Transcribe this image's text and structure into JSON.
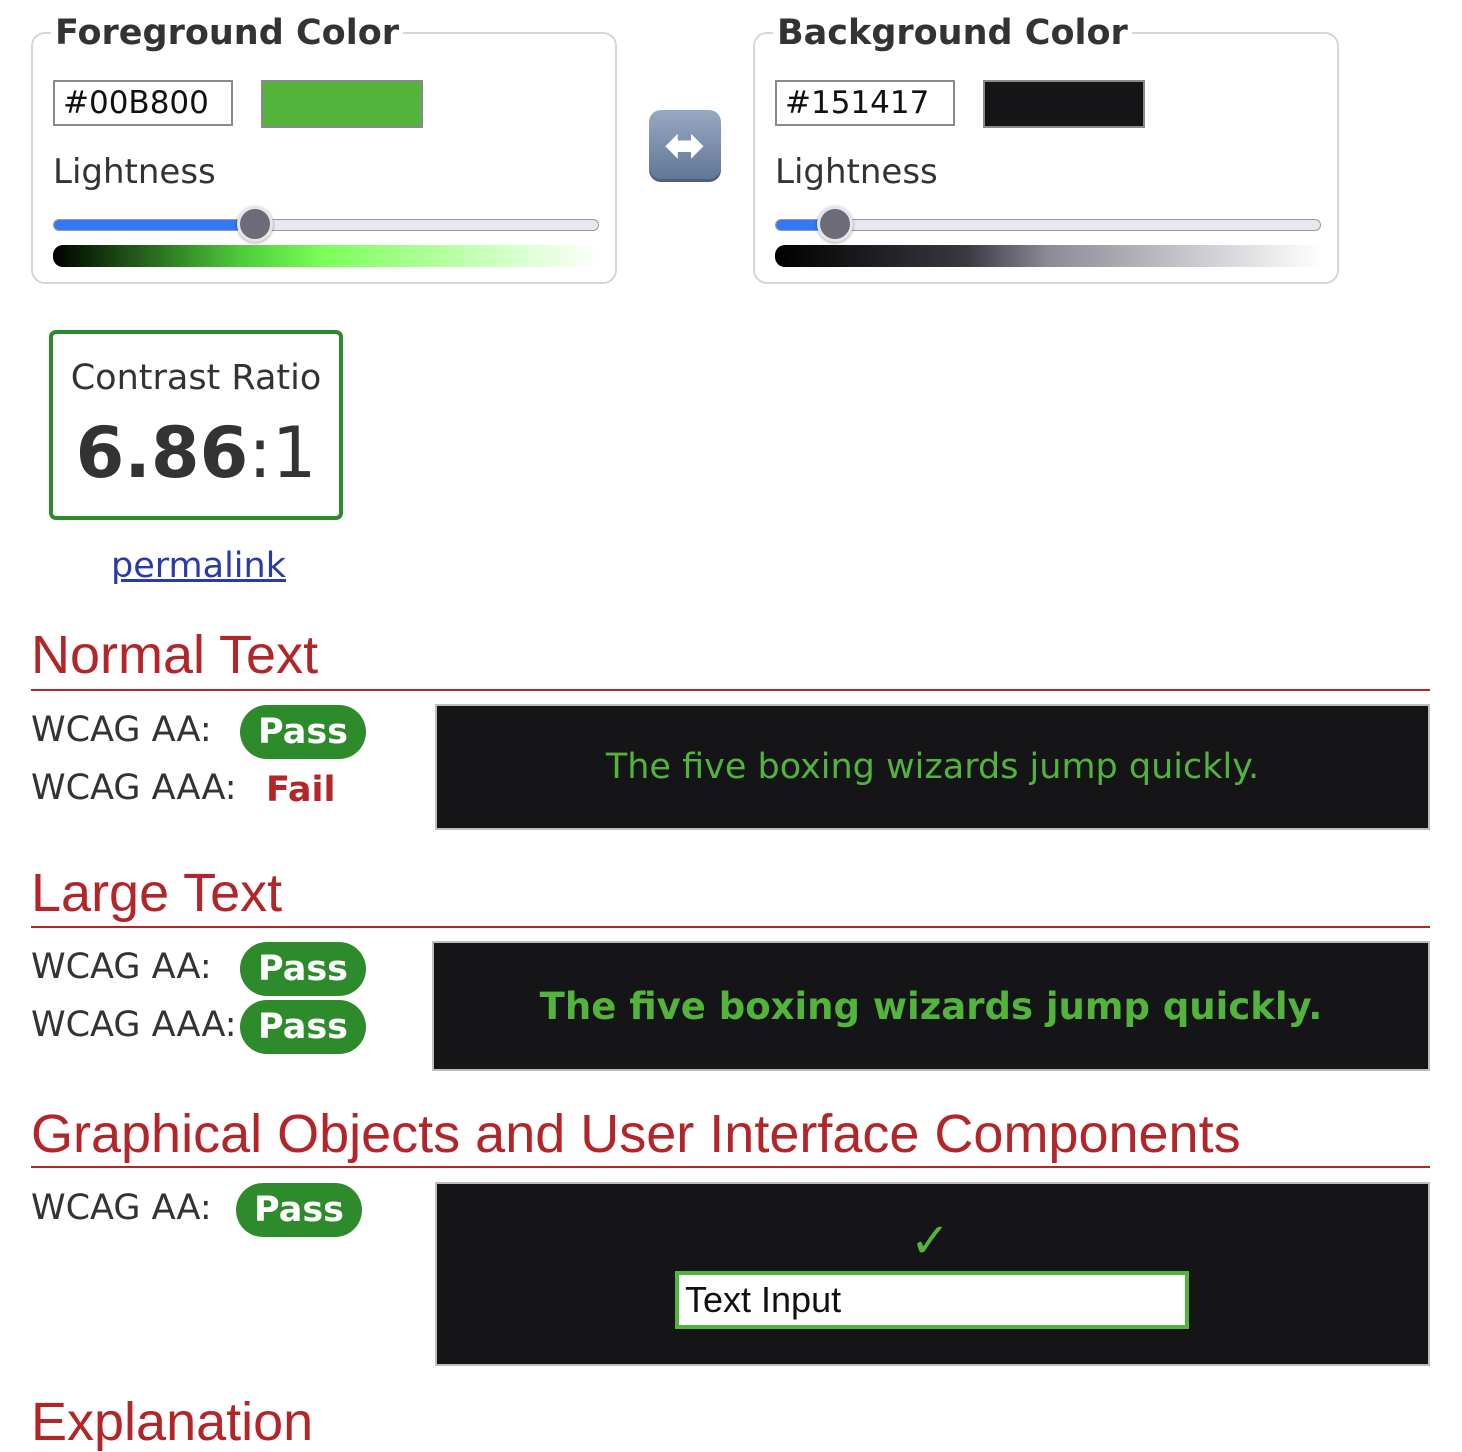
{
  "foreground": {
    "legend": "Foreground Color",
    "hex_value": "#00B800",
    "swatch_color": "#52b43a",
    "lightness_label": "Lightness",
    "lightness_fraction": 0.37,
    "gradient": [
      "#000000",
      "#4ecf3a",
      "#7dff5a",
      "#ffffff"
    ]
  },
  "background": {
    "legend": "Background Color",
    "hex_value": "#151417",
    "swatch_color": "#151417",
    "lightness_label": "Lightness",
    "lightness_fraction": 0.11,
    "gradient": [
      "#000000",
      "#3a3840",
      "#8c8a96",
      "#ffffff"
    ]
  },
  "swap": {
    "icon": "left-right-arrow-icon",
    "glyph": "⬌"
  },
  "contrast": {
    "label": "Contrast Ratio",
    "value": "6.86",
    "suffix": ":1",
    "permalink": "permalink"
  },
  "sections": {
    "normal": {
      "title": "Normal Text",
      "aa_label": "WCAG AA:",
      "aa_result": "Pass",
      "aaa_label": "WCAG AAA:",
      "aaa_result": "Fail",
      "sample": "The five boxing wizards jump quickly."
    },
    "large": {
      "title": "Large Text",
      "aa_label": "WCAG AA:",
      "aa_result": "Pass",
      "aaa_label": "WCAG AAA:",
      "aaa_result": "Pass",
      "sample": "The five boxing wizards jump quickly."
    },
    "graphical": {
      "title": "Graphical Objects and User Interface Components",
      "aa_label": "WCAG AA:",
      "aa_result": "Pass",
      "check_glyph": "✓",
      "input_value": "Text Input"
    },
    "explanation": {
      "title": "Explanation"
    }
  },
  "colors": {
    "heading": "#b2262a",
    "pass": "#2e8b2c",
    "sample_bg": "#151417",
    "sample_fg": "#52b43a"
  }
}
